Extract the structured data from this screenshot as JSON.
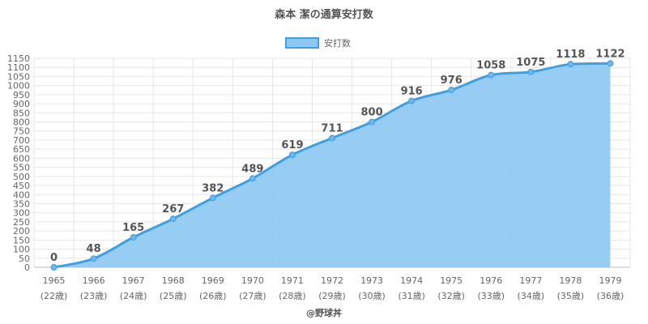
{
  "chart_data": {
    "type": "area",
    "title": "森本 潔の通算安打数",
    "legend": {
      "label": "安打数",
      "position": "top-center"
    },
    "x": [
      "1965",
      "1966",
      "1967",
      "1968",
      "1969",
      "1970",
      "1971",
      "1972",
      "1973",
      "1974",
      "1975",
      "1976",
      "1977",
      "1978",
      "1979"
    ],
    "x_sublabels": [
      "(22歳)",
      "(23歳)",
      "(24歳)",
      "(25歳)",
      "(26歳)",
      "(27歳)",
      "(28歳)",
      "(29歳)",
      "(30歳)",
      "(31歳)",
      "(32歳)",
      "(33歳)",
      "(34歳)",
      "(35歳)",
      "(36歳)"
    ],
    "values": [
      0,
      48,
      165,
      267,
      382,
      489,
      619,
      711,
      800,
      916,
      976,
      1058,
      1075,
      1118,
      1122
    ],
    "data_labels": [
      "0",
      "48",
      "165",
      "267",
      "382",
      "489",
      "619",
      "711",
      "800",
      "916",
      "976",
      "1058",
      "1075",
      "1118",
      "1122"
    ],
    "ylim": [
      0,
      1150
    ],
    "y_ticks": [
      "0",
      "50",
      "100",
      "150",
      "200",
      "250",
      "300",
      "350",
      "400",
      "450",
      "500",
      "550",
      "600",
      "650",
      "700",
      "750",
      "800",
      "850",
      "900",
      "950",
      "1000",
      "1050",
      "1100",
      "1150"
    ],
    "grid": true,
    "colors": {
      "line": "#3e9fe3",
      "fill": "#8cc8f2",
      "point": "#6cb8ee"
    }
  },
  "credit": "@野球丼"
}
